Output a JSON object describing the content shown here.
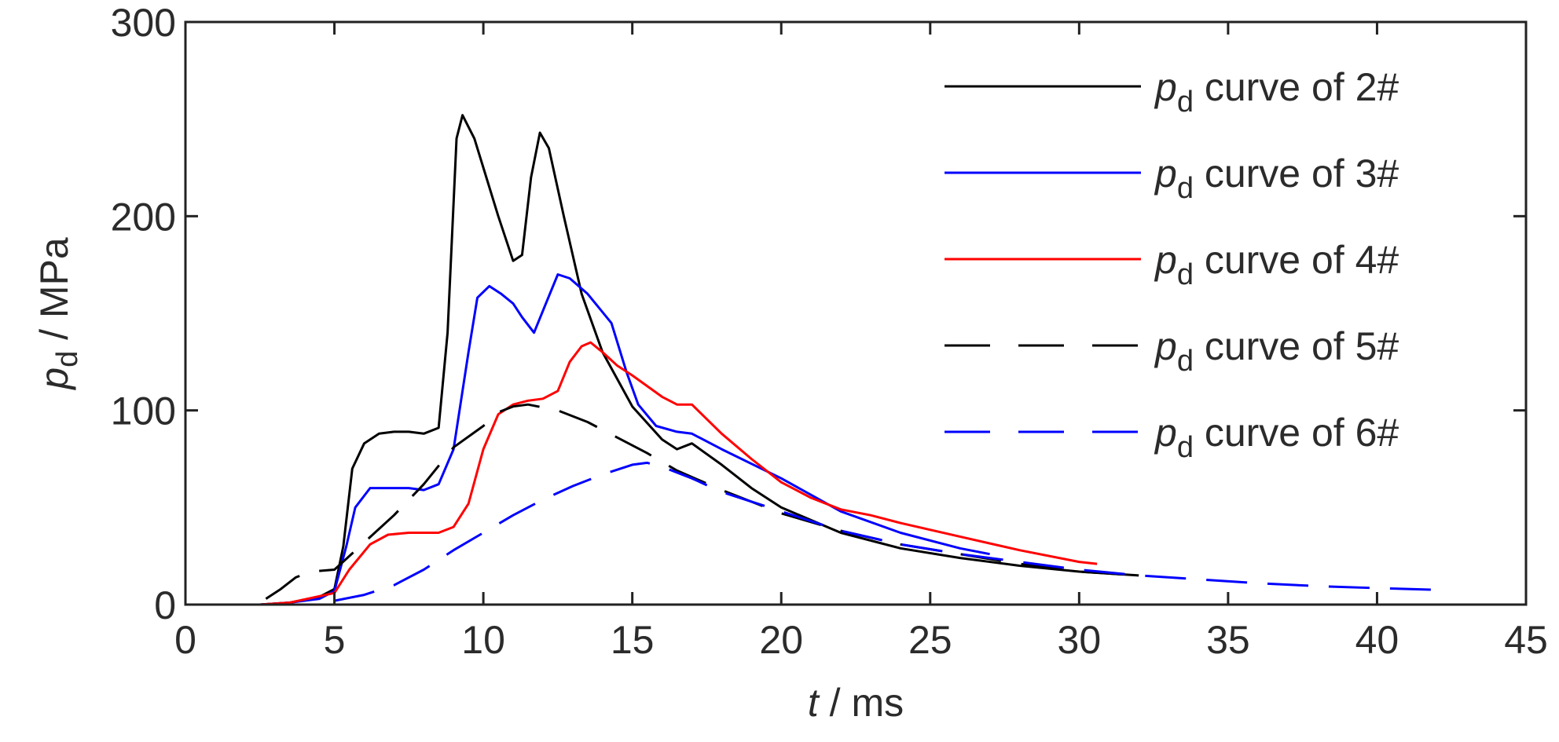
{
  "chart_data": {
    "type": "line",
    "xlabel_var": "t",
    "xlabel_unit": " / ms",
    "ylabel_var": "p",
    "ylabel_sub": "d",
    "ylabel_unit": " / MPa",
    "xlim": [
      0,
      45
    ],
    "ylim": [
      0,
      300
    ],
    "xticks": [
      0,
      5,
      10,
      15,
      20,
      25,
      30,
      35,
      40,
      45
    ],
    "yticks": [
      0,
      100,
      200,
      300
    ],
    "grid": false,
    "legend_position": "top-right",
    "series": [
      {
        "legend_var": "p",
        "legend_sub": "d",
        "legend_text": " curve of  2#",
        "color": "#000000",
        "dash": "solid",
        "points": [
          [
            0,
            0
          ],
          [
            2.5,
            0
          ],
          [
            3.5,
            1
          ],
          [
            4.5,
            4
          ],
          [
            5,
            8
          ],
          [
            5.3,
            30
          ],
          [
            5.6,
            70
          ],
          [
            6,
            83
          ],
          [
            6.5,
            88
          ],
          [
            7,
            89
          ],
          [
            7.5,
            89
          ],
          [
            8,
            88
          ],
          [
            8.5,
            91
          ],
          [
            8.8,
            140
          ],
          [
            9.1,
            240
          ],
          [
            9.3,
            252
          ],
          [
            9.7,
            240
          ],
          [
            10,
            225
          ],
          [
            10.5,
            200
          ],
          [
            11,
            177
          ],
          [
            11.3,
            180
          ],
          [
            11.6,
            220
          ],
          [
            11.9,
            243
          ],
          [
            12.2,
            235
          ],
          [
            12.7,
            200
          ],
          [
            13.3,
            160
          ],
          [
            14,
            130
          ],
          [
            15,
            102
          ],
          [
            16,
            85
          ],
          [
            16.5,
            80
          ],
          [
            17,
            83
          ],
          [
            18,
            72
          ],
          [
            19,
            60
          ],
          [
            20,
            50
          ],
          [
            22,
            37
          ],
          [
            24,
            29
          ],
          [
            26,
            24
          ],
          [
            28,
            20
          ],
          [
            30,
            17
          ],
          [
            32,
            15
          ]
        ]
      },
      {
        "legend_var": "p",
        "legend_sub": "d",
        "legend_text": " curve of  3#",
        "color": "#0000ff",
        "dash": "solid",
        "points": [
          [
            0,
            0
          ],
          [
            2.5,
            0
          ],
          [
            3.5,
            1
          ],
          [
            4.5,
            3
          ],
          [
            5,
            7
          ],
          [
            5.4,
            30
          ],
          [
            5.7,
            50
          ],
          [
            6.2,
            60
          ],
          [
            7,
            60
          ],
          [
            7.5,
            60
          ],
          [
            8,
            59
          ],
          [
            8.5,
            62
          ],
          [
            9,
            80
          ],
          [
            9.5,
            130
          ],
          [
            9.8,
            158
          ],
          [
            10.2,
            164
          ],
          [
            10.6,
            160
          ],
          [
            11,
            155
          ],
          [
            11.3,
            148
          ],
          [
            11.7,
            140
          ],
          [
            12.1,
            155
          ],
          [
            12.5,
            170
          ],
          [
            12.9,
            168
          ],
          [
            13.5,
            160
          ],
          [
            14.3,
            145
          ],
          [
            14.8,
            120
          ],
          [
            15.2,
            103
          ],
          [
            15.8,
            92
          ],
          [
            16.5,
            89
          ],
          [
            17,
            88
          ],
          [
            18,
            80
          ],
          [
            20,
            65
          ],
          [
            22,
            48
          ],
          [
            24,
            37
          ],
          [
            26,
            29
          ],
          [
            27,
            26
          ]
        ]
      },
      {
        "legend_var": "p",
        "legend_sub": "d",
        "legend_text": " curve of  4#",
        "color": "#ff0000",
        "dash": "solid",
        "points": [
          [
            0,
            0
          ],
          [
            2.5,
            0
          ],
          [
            3.5,
            1
          ],
          [
            5,
            6
          ],
          [
            5.5,
            18
          ],
          [
            6.2,
            31
          ],
          [
            6.8,
            36
          ],
          [
            7.5,
            37
          ],
          [
            8.5,
            37
          ],
          [
            9,
            40
          ],
          [
            9.5,
            52
          ],
          [
            10,
            80
          ],
          [
            10.5,
            98
          ],
          [
            11,
            103
          ],
          [
            11.5,
            105
          ],
          [
            12,
            106
          ],
          [
            12.5,
            110
          ],
          [
            12.9,
            125
          ],
          [
            13.3,
            133
          ],
          [
            13.6,
            135
          ],
          [
            14,
            130
          ],
          [
            14.5,
            123
          ],
          [
            15,
            118
          ],
          [
            16,
            107
          ],
          [
            16.5,
            103
          ],
          [
            17,
            103
          ],
          [
            18,
            88
          ],
          [
            19,
            75
          ],
          [
            20,
            63
          ],
          [
            21,
            55
          ],
          [
            22,
            49
          ],
          [
            23,
            46
          ],
          [
            24,
            42
          ],
          [
            26,
            35
          ],
          [
            28,
            28
          ],
          [
            30,
            22
          ],
          [
            30.6,
            21
          ]
        ]
      },
      {
        "legend_var": "p",
        "legend_sub": "d",
        "legend_text": " curve of  5#",
        "color": "#000000",
        "dash": "dashed",
        "points": [
          [
            2.7,
            3
          ],
          [
            3.2,
            8
          ],
          [
            3.7,
            14
          ],
          [
            4.2,
            17
          ],
          [
            5,
            18
          ],
          [
            6,
            32
          ],
          [
            7,
            46
          ],
          [
            8,
            62
          ],
          [
            9,
            81
          ],
          [
            10,
            92
          ],
          [
            10.5,
            99
          ],
          [
            11,
            102
          ],
          [
            11.5,
            103
          ],
          [
            12.5,
            100
          ],
          [
            13.5,
            94
          ],
          [
            14.5,
            86
          ],
          [
            15.5,
            78
          ],
          [
            16.5,
            69
          ],
          [
            18,
            59
          ],
          [
            20,
            47
          ],
          [
            22,
            38
          ],
          [
            24,
            31
          ],
          [
            26,
            26
          ],
          [
            28,
            21
          ],
          [
            30,
            17
          ],
          [
            32,
            15
          ]
        ]
      },
      {
        "legend_var": "p",
        "legend_sub": "d",
        "legend_text": " curve of  6#",
        "color": "#0000ff",
        "dash": "dashed",
        "points": [
          [
            5,
            2
          ],
          [
            6,
            5
          ],
          [
            7,
            10
          ],
          [
            8,
            18
          ],
          [
            9,
            28
          ],
          [
            10,
            37
          ],
          [
            11,
            46
          ],
          [
            12,
            54
          ],
          [
            13,
            61
          ],
          [
            14,
            67
          ],
          [
            15,
            72
          ],
          [
            15.5,
            73
          ],
          [
            16,
            71
          ],
          [
            17,
            65
          ],
          [
            18,
            58
          ],
          [
            20,
            48
          ],
          [
            22,
            38
          ],
          [
            24,
            31
          ],
          [
            26,
            26
          ],
          [
            28,
            22
          ],
          [
            30,
            18
          ],
          [
            32,
            15
          ],
          [
            34,
            13
          ],
          [
            36,
            11
          ],
          [
            38,
            9.5
          ],
          [
            40,
            8.5
          ],
          [
            42.3,
            7.5
          ]
        ]
      }
    ]
  }
}
